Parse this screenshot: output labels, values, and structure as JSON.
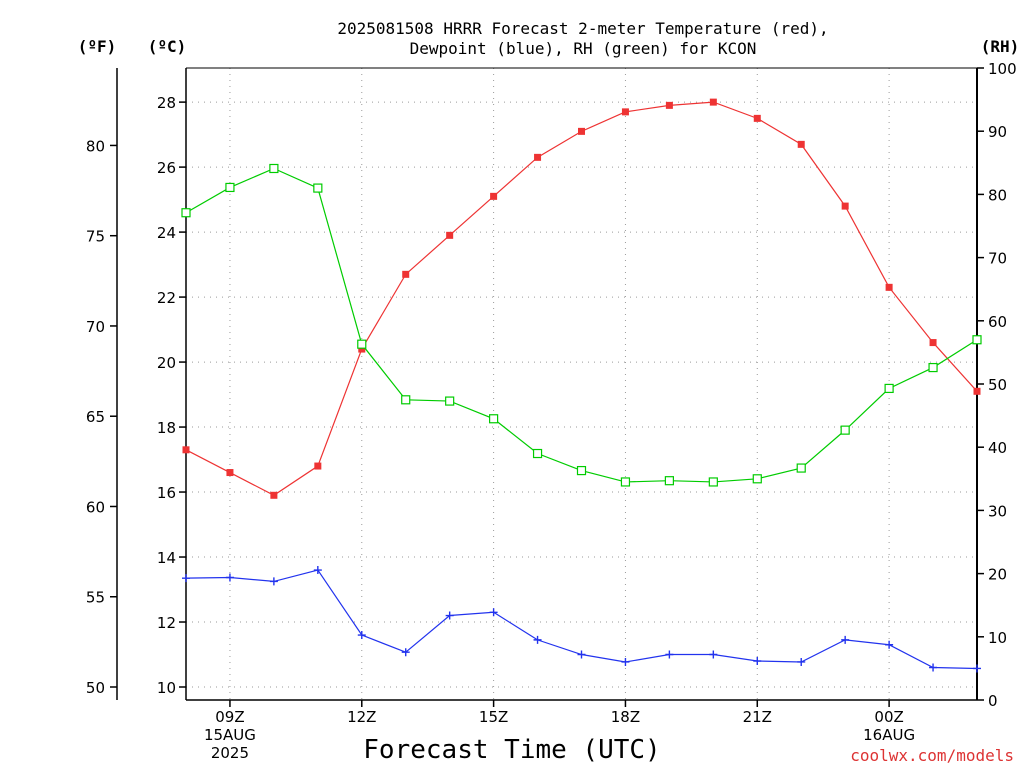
{
  "chart_data": {
    "type": "line",
    "title": [
      "2025081508 HRRR Forecast 2-meter Temperature (red),",
      "Dewpoint (blue), RH (green) for KCON"
    ],
    "xlabel": "Forecast Time (UTC)",
    "left_outer_unit": "(ºF)",
    "left_inner_unit": "(ºC)",
    "right_unit": "(RH)",
    "forecast_hours": [
      8,
      9,
      10,
      11,
      12,
      13,
      14,
      15,
      16,
      17,
      18,
      19,
      20,
      21,
      22,
      23,
      24,
      25,
      26
    ],
    "x_ticks": [
      {
        "hour": 9,
        "lines": [
          "09Z",
          "15AUG",
          "2025"
        ]
      },
      {
        "hour": 12,
        "lines": [
          "12Z"
        ]
      },
      {
        "hour": 15,
        "lines": [
          "15Z"
        ]
      },
      {
        "hour": 18,
        "lines": [
          "18Z"
        ]
      },
      {
        "hour": 21,
        "lines": [
          "21Z"
        ]
      },
      {
        "hour": 24,
        "lines": [
          "00Z",
          "16AUG"
        ]
      }
    ],
    "celsius_axis": {
      "min": 9.6,
      "max": 29.05,
      "ticks": [
        10,
        12,
        14,
        16,
        18,
        20,
        22,
        24,
        26,
        28
      ]
    },
    "fahrenheit_ticks": [
      50,
      55,
      60,
      65,
      70,
      75,
      80
    ],
    "rh_axis": {
      "min": 0,
      "max": 100,
      "ticks": [
        0,
        10,
        20,
        30,
        40,
        50,
        60,
        70,
        80,
        90,
        100
      ]
    },
    "grid": true,
    "series": [
      {
        "name": "Temperature",
        "axis": "celsius",
        "color": "#ee3333",
        "marker": "filled-square",
        "values": [
          17.3,
          16.6,
          15.9,
          16.8,
          20.4,
          22.7,
          23.9,
          25.1,
          26.3,
          27.1,
          27.7,
          27.9,
          28.0,
          27.5,
          26.7,
          24.8,
          22.3,
          20.6,
          19.1
        ]
      },
      {
        "name": "Dewpoint",
        "axis": "celsius",
        "color": "#2233ee",
        "marker": "plus",
        "values": [
          13.35,
          13.37,
          13.25,
          13.6,
          11.6,
          11.07,
          12.2,
          12.3,
          11.45,
          11.0,
          10.77,
          11.0,
          11.0,
          10.8,
          10.77,
          11.45,
          11.3,
          10.6,
          10.57
        ]
      },
      {
        "name": "RH",
        "axis": "rh",
        "color": "#00cc00",
        "marker": "open-square",
        "values": [
          77.1,
          81.1,
          84.1,
          81.0,
          56.3,
          47.5,
          47.3,
          44.5,
          39.0,
          36.3,
          34.5,
          34.7,
          34.5,
          35.0,
          36.7,
          42.7,
          49.3,
          52.6,
          57.0
        ]
      }
    ]
  },
  "credit": {
    "text": "coolwx.com/models",
    "color": "#dd3333"
  }
}
